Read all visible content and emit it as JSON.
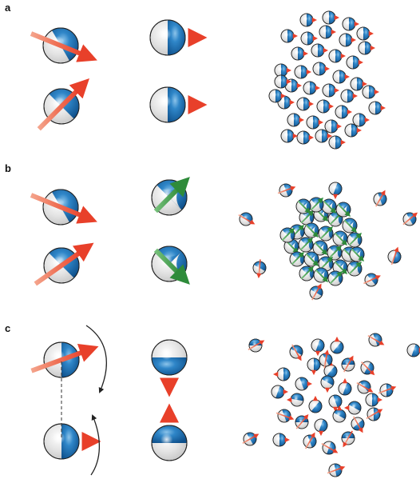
{
  "panels": [
    {
      "label": "a"
    },
    {
      "label": "b"
    },
    {
      "label": "c"
    }
  ],
  "colors": {
    "sphere_blue": "#1f6fb2",
    "sphere_light": "#2f86c8",
    "sphere_gray": "#d9d9d9",
    "arrow_red": "#e8402a",
    "arrow_pink": "#f08870",
    "arrow_green": "#2e8b3a",
    "outline": "#222222",
    "curve": "#222222"
  },
  "icons": {
    "spin_particle": "sphere-with-arrow-icon",
    "rotation_arrow": "curved-arrow-icon"
  }
}
